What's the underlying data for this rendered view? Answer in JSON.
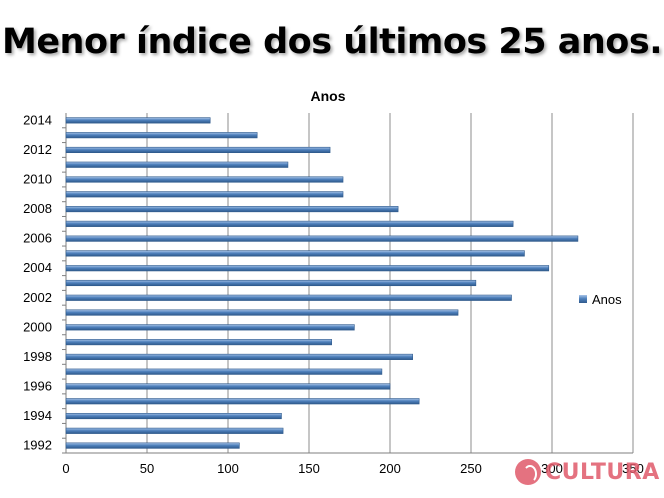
{
  "slide": {
    "title": "Menor índice dos últimos 25 anos."
  },
  "watermark": {
    "text": "CULTURA"
  },
  "colors": {
    "bar": "#4f81bd",
    "bar_dark": "#2f5a8c",
    "grid": "#8c8c8c"
  },
  "chart_data": {
    "type": "bar",
    "orientation": "horizontal",
    "title": "Anos",
    "xlabel": "",
    "ylabel": "",
    "xlim": [
      0,
      350
    ],
    "x_ticks": [
      0,
      50,
      100,
      150,
      200,
      250,
      300,
      350
    ],
    "grid": true,
    "legend_position": "right",
    "y_tick_labels": [
      "1992",
      "1994",
      "1996",
      "1998",
      "2000",
      "2002",
      "2004",
      "2006",
      "2008",
      "2010",
      "2012",
      "2014"
    ],
    "categories": [
      "1992",
      "1993",
      "1994",
      "1995",
      "1996",
      "1997",
      "1998",
      "1999",
      "2000",
      "2001",
      "2002",
      "2003",
      "2004",
      "2005",
      "2006",
      "2007",
      "2008",
      "2009",
      "2010",
      "2011",
      "2012",
      "2013",
      "2014"
    ],
    "series": [
      {
        "name": "Anos",
        "values": [
          107,
          134,
          133,
          218,
          200,
          195,
          214,
          164,
          178,
          242,
          275,
          253,
          298,
          283,
          316,
          276,
          205,
          171,
          171,
          137,
          163,
          118,
          89
        ]
      }
    ]
  }
}
